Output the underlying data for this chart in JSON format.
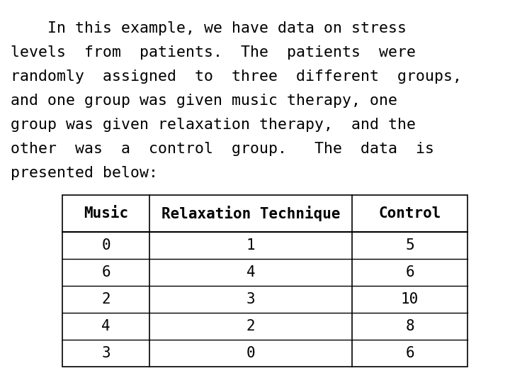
{
  "paragraph_lines": [
    "    In this example, we have data on stress",
    "levels  from  patients.  The  patients  were",
    "randomly  assigned  to  three  different  groups,",
    "and one group was given music therapy, one",
    "group was given relaxation therapy,  and the",
    "other  was  a  control  group.   The  data  is",
    "presented below:"
  ],
  "col_headers": [
    "Music",
    "Relaxation Technique",
    "Control"
  ],
  "table_data": [
    [
      "0",
      "1",
      "5"
    ],
    [
      "6",
      "4",
      "6"
    ],
    [
      "2",
      "3",
      "10"
    ],
    [
      "4",
      "2",
      "8"
    ],
    [
      "3",
      "0",
      "6"
    ]
  ],
  "bg_color": "#ffffff",
  "text_color": "#000000",
  "font_size_para": 15.5,
  "font_size_table": 15.0,
  "font_family": "DejaVu Sans Mono"
}
